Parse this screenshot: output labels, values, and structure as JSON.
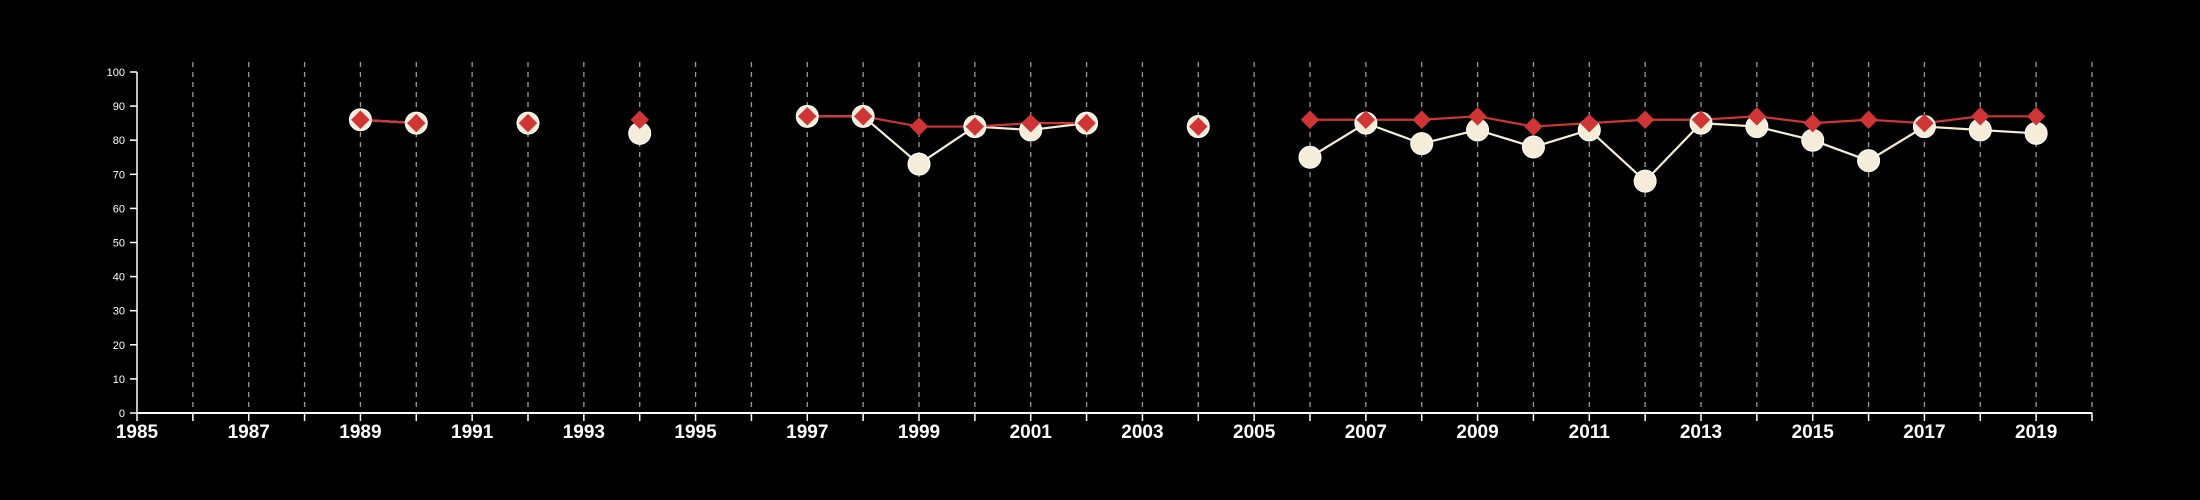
{
  "chart_data": {
    "type": "line",
    "title": "",
    "xlabel": "",
    "ylabel": "",
    "xlim": [
      1985,
      2020
    ],
    "ylim": [
      0,
      100
    ],
    "x_ticks": [
      "1985",
      "1987",
      "1989",
      "1991",
      "1993",
      "1995",
      "1997",
      "1999",
      "2001",
      "2003",
      "2005",
      "2007",
      "2009",
      "2011",
      "2013",
      "2015",
      "2017",
      "2019"
    ],
    "y_ticks": [
      "0",
      "10",
      "20",
      "30",
      "40",
      "50",
      "60",
      "70",
      "80",
      "90",
      "100"
    ],
    "vertical_gridlines": "dashed, every year",
    "legend": "none",
    "colors": {
      "background": "#000000",
      "axis": "#ffffff",
      "grid": "#9a9a9a",
      "series_circle": "#f5ecd9",
      "series_diamond": "#d03535"
    },
    "series": [
      {
        "marker": "circle",
        "color": "#f5ecd9",
        "points": [
          [
            1989,
            86
          ],
          [
            1990,
            85
          ],
          [
            1992,
            85
          ],
          [
            1994,
            82
          ],
          [
            1997,
            87
          ],
          [
            1998,
            87
          ],
          [
            1999,
            73
          ],
          [
            2000,
            84
          ],
          [
            2001,
            83
          ],
          [
            2002,
            85
          ],
          [
            2004,
            84
          ],
          [
            2006,
            75
          ],
          [
            2007,
            85
          ],
          [
            2008,
            79
          ],
          [
            2009,
            83
          ],
          [
            2010,
            78
          ],
          [
            2011,
            83
          ],
          [
            2012,
            68
          ],
          [
            2013,
            85
          ],
          [
            2014,
            84
          ],
          [
            2015,
            80
          ],
          [
            2016,
            74
          ],
          [
            2017,
            84
          ],
          [
            2018,
            83
          ],
          [
            2019,
            82
          ]
        ]
      },
      {
        "marker": "diamond",
        "color": "#d03535",
        "points": [
          [
            1989,
            86
          ],
          [
            1990,
            85
          ],
          [
            1992,
            85
          ],
          [
            1994,
            86
          ],
          [
            1997,
            87
          ],
          [
            1998,
            87
          ],
          [
            1999,
            84
          ],
          [
            2000,
            84
          ],
          [
            2001,
            85
          ],
          [
            2002,
            85
          ],
          [
            2004,
            84
          ],
          [
            2006,
            86
          ],
          [
            2007,
            86
          ],
          [
            2008,
            86
          ],
          [
            2009,
            87
          ],
          [
            2010,
            84
          ],
          [
            2011,
            85
          ],
          [
            2012,
            86
          ],
          [
            2013,
            86
          ],
          [
            2014,
            87
          ],
          [
            2015,
            85
          ],
          [
            2016,
            86
          ],
          [
            2017,
            85
          ],
          [
            2018,
            87
          ],
          [
            2019,
            87
          ]
        ]
      }
    ]
  }
}
